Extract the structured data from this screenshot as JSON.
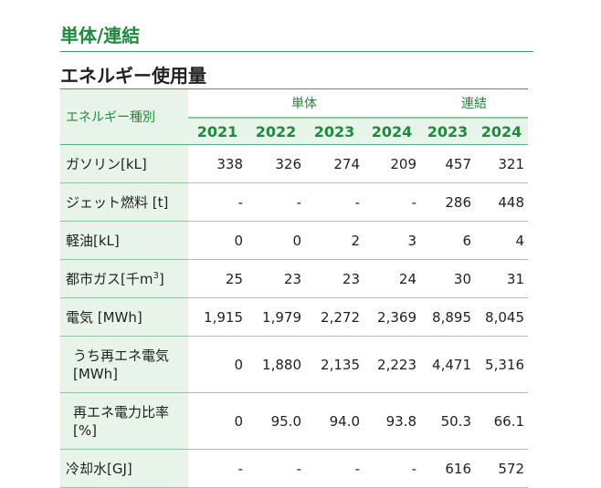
{
  "section_title": "単体/連結",
  "table_title": "エネルギー使用量",
  "header": {
    "kind_label": "エネルギー種別",
    "group_single": "単体",
    "group_consolidated": "連結",
    "years_single": [
      "2021",
      "2022",
      "2023",
      "2024"
    ],
    "years_consolidated": [
      "2023",
      "2024"
    ]
  },
  "rows": [
    {
      "label": "ガソリン[kL]",
      "values": [
        "338",
        "326",
        "274",
        "209",
        "457",
        "321"
      ]
    },
    {
      "label": "ジェット燃料 [t]",
      "values": [
        "-",
        "-",
        "-",
        "-",
        "286",
        "448"
      ]
    },
    {
      "label": "軽油[kL]",
      "values": [
        "0",
        "0",
        "2",
        "3",
        "6",
        "4"
      ]
    },
    {
      "label_main": "都市ガス[千m",
      "label_sup": "3",
      "label_end": "]",
      "values": [
        "25",
        "23",
        "23",
        "24",
        "30",
        "31"
      ]
    },
    {
      "label": "電気 [MWh]",
      "values": [
        "1,915",
        "1,979",
        "2,272",
        "2,369",
        "8,895",
        "8,045"
      ]
    },
    {
      "label_line1": "うち再エネ電気",
      "label_line2": "[MWh]",
      "values": [
        "0",
        "1,880",
        "2,135",
        "2,223",
        "4,471",
        "5,316"
      ]
    },
    {
      "label_line1": "再エネ電力比率",
      "label_line2": "[%]",
      "values": [
        "0",
        "95.0",
        "94.0",
        "93.8",
        "50.3",
        "66.1"
      ]
    },
    {
      "label": "冷却水[GJ]",
      "values": [
        "-",
        "-",
        "-",
        "-",
        "616",
        "572"
      ]
    }
  ],
  "colors": {
    "accent": "#1f8a3e",
    "header_bg": "#e8f4ea",
    "rule": "#3aa15a"
  }
}
